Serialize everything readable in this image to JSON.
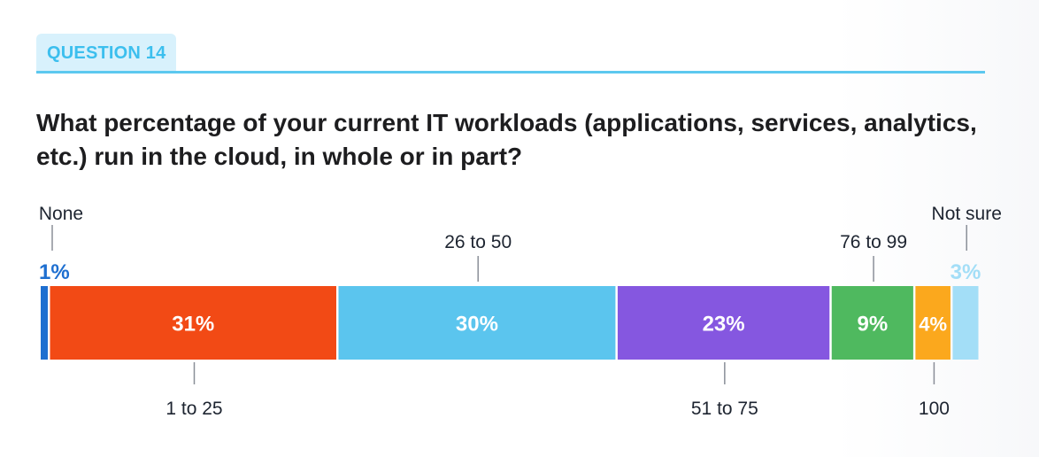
{
  "header": {
    "tag": "QUESTION 14",
    "question": "What percentage of your current IT workloads (applications, services, analytics, etc.) run in the cloud, in whole or in part?"
  },
  "chart_data": {
    "type": "bar",
    "orientation": "horizontal-stacked-100",
    "categories": [
      "None",
      "1 to 25",
      "26 to 50",
      "51 to 75",
      "76 to 99",
      "100",
      "Not sure"
    ],
    "values": [
      1,
      31,
      30,
      23,
      9,
      4,
      3
    ],
    "value_labels": [
      "1%",
      "31%",
      "30%",
      "23%",
      "9%",
      "4%",
      "3%"
    ],
    "label_side": [
      "above",
      "below",
      "above",
      "below",
      "above",
      "below",
      "above"
    ],
    "colors": [
      "#1e6fd0",
      "#f24a15",
      "#5bc5ee",
      "#8557e0",
      "#4fb95f",
      "#fba81d",
      "#a3def7"
    ],
    "xlim": [
      0,
      101
    ]
  }
}
